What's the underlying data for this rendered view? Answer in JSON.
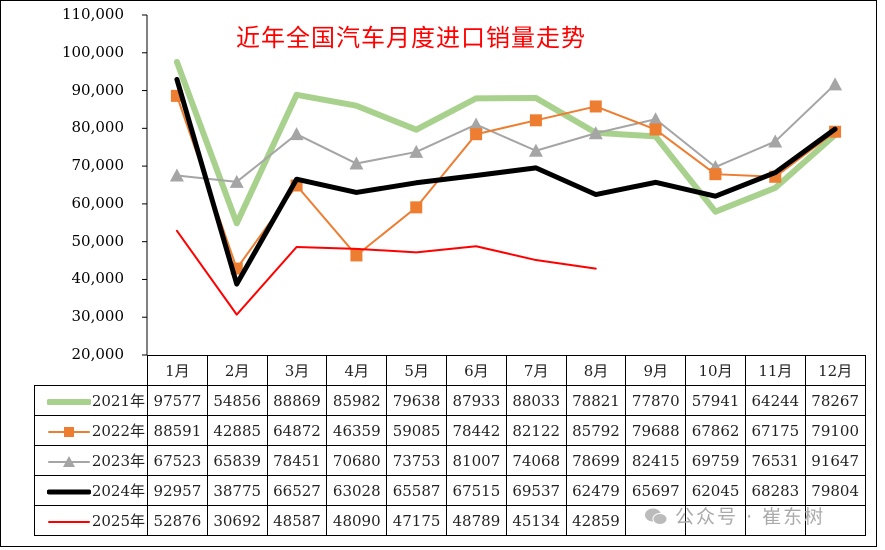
{
  "chart_data": {
    "type": "line",
    "title": "近年全国汽车月度进口销量走势",
    "xlabel": "",
    "ylabel": "",
    "ylim": [
      20000,
      110000
    ],
    "yticks": [
      "110,000",
      "100,000",
      "90,000",
      "80,000",
      "70,000",
      "60,000",
      "50,000",
      "40,000",
      "30,000",
      "20,000"
    ],
    "categories": [
      "1月",
      "2月",
      "3月",
      "4月",
      "5月",
      "6月",
      "7月",
      "8月",
      "9月",
      "10月",
      "11月",
      "12月"
    ],
    "grid": false,
    "legend_position": "data-table",
    "series": [
      {
        "name": "2021年",
        "color": "#a9d18e",
        "marker": "none",
        "width": 6,
        "values": [
          97577,
          54856,
          88869,
          85982,
          79638,
          87933,
          88033,
          78821,
          77870,
          57941,
          64244,
          78267
        ]
      },
      {
        "name": "2022年",
        "color": "#ed7d31",
        "marker": "square",
        "width": 2,
        "values": [
          88591,
          42885,
          64872,
          46359,
          59085,
          78442,
          82122,
          85792,
          79688,
          67862,
          67175,
          79100
        ]
      },
      {
        "name": "2023年",
        "color": "#a5a5a5",
        "marker": "triangle",
        "width": 2,
        "values": [
          67523,
          65839,
          78451,
          70680,
          73753,
          81007,
          74068,
          78699,
          82415,
          69759,
          76531,
          91647
        ]
      },
      {
        "name": "2024年",
        "color": "#000000",
        "marker": "none",
        "width": 5,
        "values": [
          92957,
          38775,
          66527,
          63028,
          65587,
          67515,
          69537,
          62479,
          65697,
          62045,
          68283,
          79804
        ]
      },
      {
        "name": "2025年",
        "color": "#ff0000",
        "marker": "none",
        "width": 2,
        "values": [
          52876,
          30692,
          48587,
          48090,
          47175,
          48789,
          45134,
          42859,
          null,
          null,
          null,
          null
        ]
      }
    ]
  },
  "watermark": "公众号 · 崔东树"
}
